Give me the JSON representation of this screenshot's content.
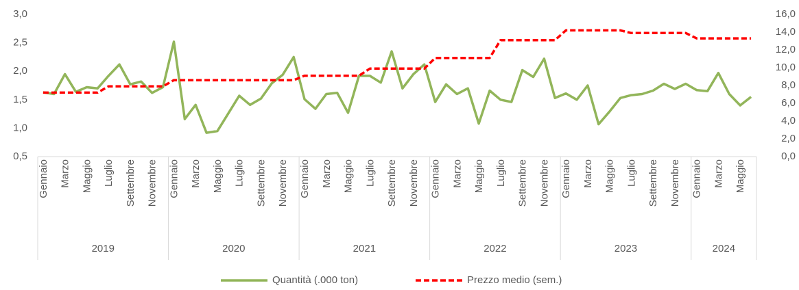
{
  "chart_data": {
    "type": "line",
    "year_groups": [
      {
        "name": "2019",
        "months": [
          "Gennaio",
          null,
          "Marzo",
          null,
          "Maggio",
          null,
          "Luglio",
          null,
          "Settembre",
          null,
          "Novembre",
          null
        ]
      },
      {
        "name": "2020",
        "months": [
          "Gennaio",
          null,
          "Marzo",
          null,
          "Maggio",
          null,
          "Luglio",
          null,
          "Settembre",
          null,
          "Novembre",
          null
        ]
      },
      {
        "name": "2021",
        "months": [
          "Gennaio",
          null,
          "Marzo",
          null,
          "Maggio",
          null,
          "Luglio",
          null,
          "Settembre",
          null,
          "Novembre",
          null
        ]
      },
      {
        "name": "2022",
        "months": [
          "Gennaio",
          null,
          "Marzo",
          null,
          "Maggio",
          null,
          "Luglio",
          null,
          "Settembre",
          null,
          "Novembre",
          null
        ]
      },
      {
        "name": "2023",
        "months": [
          "Gennaio",
          null,
          "Marzo",
          null,
          "Maggio",
          null,
          "Luglio",
          null,
          "Settembre",
          null,
          "Novembre",
          null
        ]
      },
      {
        "name": "2024",
        "months": [
          "Gennaio",
          null,
          "Marzo",
          null,
          "Maggio",
          null
        ]
      }
    ],
    "series": [
      {
        "name": "Quantità (.000 ton)",
        "color": "#92b55a",
        "dash": false,
        "values": [
          1.63,
          1.6,
          1.95,
          1.64,
          1.72,
          1.7,
          1.92,
          2.12,
          1.77,
          1.82,
          1.62,
          1.72,
          2.52,
          1.16,
          1.41,
          0.92,
          0.95,
          1.26,
          1.57,
          1.41,
          1.52,
          1.79,
          1.94,
          2.25,
          1.51,
          1.34,
          1.6,
          1.62,
          1.27,
          1.92,
          1.92,
          1.8,
          2.35,
          1.7,
          1.95,
          2.12,
          1.46,
          1.77,
          1.6,
          1.7,
          1.08,
          1.66,
          1.5,
          1.46,
          2.02,
          1.9,
          2.22,
          1.53,
          1.61,
          1.5,
          1.75,
          1.07,
          1.29,
          1.53,
          1.58,
          1.6,
          1.66,
          1.78,
          1.69,
          1.78,
          1.67,
          1.65,
          1.97,
          1.6,
          1.4,
          1.55
        ]
      },
      {
        "name": "Prezzo medio (sem.)",
        "color": "#ff0000",
        "dash": true,
        "axis": "y2",
        "values": [
          7.2,
          7.2,
          7.2,
          7.2,
          7.2,
          7.2,
          7.9,
          7.9,
          7.9,
          7.9,
          7.9,
          7.9,
          8.6,
          8.6,
          8.6,
          8.6,
          8.6,
          8.6,
          8.6,
          8.6,
          8.6,
          8.6,
          8.6,
          8.6,
          9.1,
          9.1,
          9.1,
          9.1,
          9.1,
          9.1,
          9.9,
          9.9,
          9.9,
          9.9,
          9.9,
          9.9,
          11.1,
          11.1,
          11.1,
          11.1,
          11.1,
          11.1,
          13.1,
          13.1,
          13.1,
          13.1,
          13.1,
          13.1,
          14.2,
          14.2,
          14.2,
          14.2,
          14.2,
          14.2,
          13.9,
          13.9,
          13.9,
          13.9,
          13.9,
          13.9,
          13.3,
          13.3,
          13.3,
          13.3,
          13.3,
          13.3
        ]
      }
    ],
    "ylim": [
      0.5,
      3.0
    ],
    "yticks": [
      {
        "value": 0.5,
        "label": "0,5"
      },
      {
        "value": 1.0,
        "label": "1,0"
      },
      {
        "value": 1.5,
        "label": "1,5"
      },
      {
        "value": 2.0,
        "label": "2,0"
      },
      {
        "value": 2.5,
        "label": "2,5"
      },
      {
        "value": 3.0,
        "label": "3,0"
      }
    ],
    "y2lim": [
      0,
      16
    ],
    "y2ticks": [
      {
        "value": 0,
        "label": "0,0"
      },
      {
        "value": 2,
        "label": "2,0"
      },
      {
        "value": 4,
        "label": "4,0"
      },
      {
        "value": 6,
        "label": "6,0"
      },
      {
        "value": 8,
        "label": "8,0"
      },
      {
        "value": 10,
        "label": "10,0"
      },
      {
        "value": 12,
        "label": "12,0"
      },
      {
        "value": 14,
        "label": "14,0"
      },
      {
        "value": 16,
        "label": "16,0"
      }
    ],
    "grid": false,
    "legend": "bottom"
  }
}
